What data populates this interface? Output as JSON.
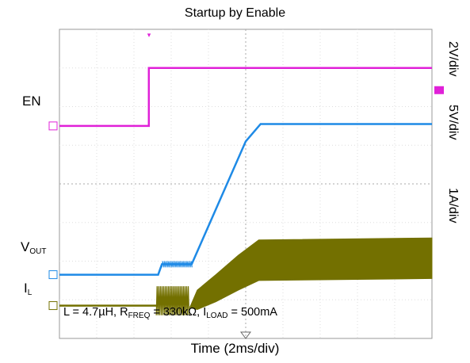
{
  "chart_data": {
    "type": "line",
    "title": "Startup by Enable",
    "xlabel": "Time (2ms/div)",
    "x_divisions": 10,
    "y_divisions": 8,
    "grid": true,
    "channels": [
      {
        "name": "EN",
        "scale": "2V/div",
        "color": "#e020d8",
        "trace": [
          [
            0,
            5.5
          ],
          [
            2.4,
            5.5
          ],
          [
            2.5,
            7.0
          ],
          [
            20,
            7.0
          ]
        ]
      },
      {
        "name": "VOUT",
        "scale": "5V/div",
        "color": "#1e8ae6",
        "trace": [
          [
            0,
            1.65
          ],
          [
            2.6,
            1.65
          ],
          [
            2.75,
            1.95
          ],
          [
            3.3,
            1.95
          ],
          [
            5.0,
            5.2
          ],
          [
            5.5,
            5.55
          ],
          [
            10,
            5.55
          ]
        ]
      },
      {
        "name": "IL",
        "scale": "1A/div",
        "color": "#737000",
        "trace": [
          [
            0,
            0.85
          ],
          [
            2.6,
            0.85
          ],
          [
            2.6,
            1.2
          ],
          [
            3.5,
            0.8
          ],
          [
            5.4,
            2.6
          ],
          [
            10,
            2.65
          ]
        ]
      }
    ],
    "annotation": {
      "text_L": "L = 4.7µH, R",
      "sub_freq": "FREQ",
      "text_R": " = 330kΩ, I",
      "sub_load": "LOAD",
      "text_I": " = 500mA"
    },
    "labels": {
      "en": "EN",
      "vout_main": "V",
      "vout_sub": "OUT",
      "il_main": "I",
      "il_sub": "L"
    }
  }
}
